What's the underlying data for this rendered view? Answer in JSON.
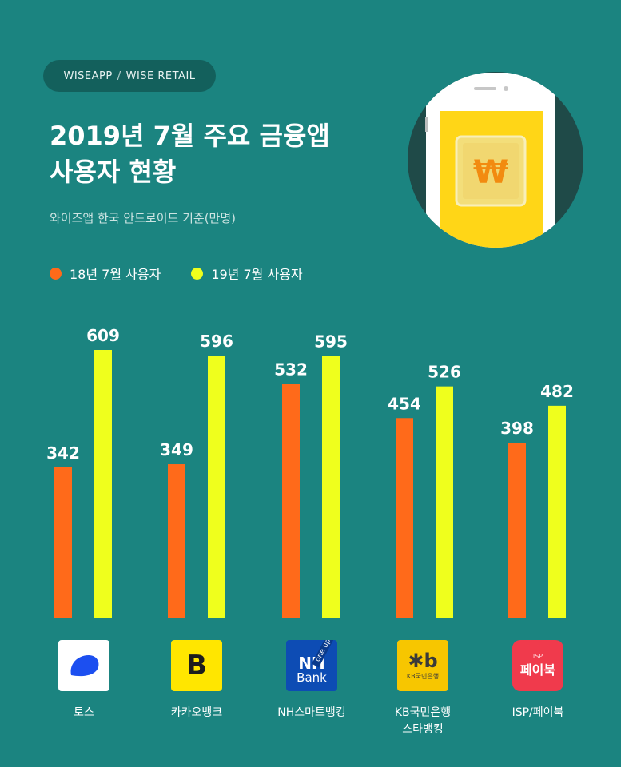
{
  "header": {
    "brand_left": "WISEAPP",
    "brand_sep": "/",
    "brand_right": "WISE RETAIL",
    "title_line1": "2019년 7월 주요 금융앱",
    "title_line2": "사용자 현황",
    "subtitle": "와이즈앱 한국 안드로이드 기준(만명)"
  },
  "icon": {
    "name": "won-currency-icon",
    "symbol": "₩"
  },
  "colors": {
    "background": "#1b8480",
    "series_2018": "#ff6a1a",
    "series_2019": "#efff1d"
  },
  "chart_data": {
    "type": "bar",
    "title": "2019년 7월 주요 금융앱 사용자 현황",
    "subtitle": "와이즈앱 한국 안드로이드 기준(만명)",
    "categories": [
      "토스",
      "카카오뱅크",
      "NH스마트뱅킹",
      "KB국민은행 스타뱅킹",
      "ISP/페이북"
    ],
    "category_lines": [
      [
        "토스"
      ],
      [
        "카카오뱅크"
      ],
      [
        "NH스마트뱅킹"
      ],
      [
        "KB국민은행",
        "스타뱅킹"
      ],
      [
        "ISP/페이북"
      ]
    ],
    "series": [
      {
        "name": "18년 7월 사용자",
        "color": "#ff6a1a",
        "values": [
          342,
          349,
          532,
          454,
          398
        ]
      },
      {
        "name": "19년 7월 사용자",
        "color": "#efff1d",
        "values": [
          609,
          596,
          595,
          526,
          482
        ]
      }
    ],
    "ylim": [
      0,
      609
    ],
    "legend_position": "top-left",
    "grid": false
  },
  "apps": [
    {
      "name": "toss",
      "bg": "#ffffff"
    },
    {
      "name": "kakaobank",
      "bg": "#ffe600",
      "glyph": "B"
    },
    {
      "name": "nh",
      "bg": "#0d4cb4",
      "line1": "NH",
      "line2": "Bank",
      "ribbon": "one up"
    },
    {
      "name": "kb",
      "bg": "#f7c600",
      "glyph": "✱b",
      "sub": "KB국민은행"
    },
    {
      "name": "isp",
      "bg": "#f03a4c",
      "top": "ISP",
      "main": "페이북"
    }
  ]
}
